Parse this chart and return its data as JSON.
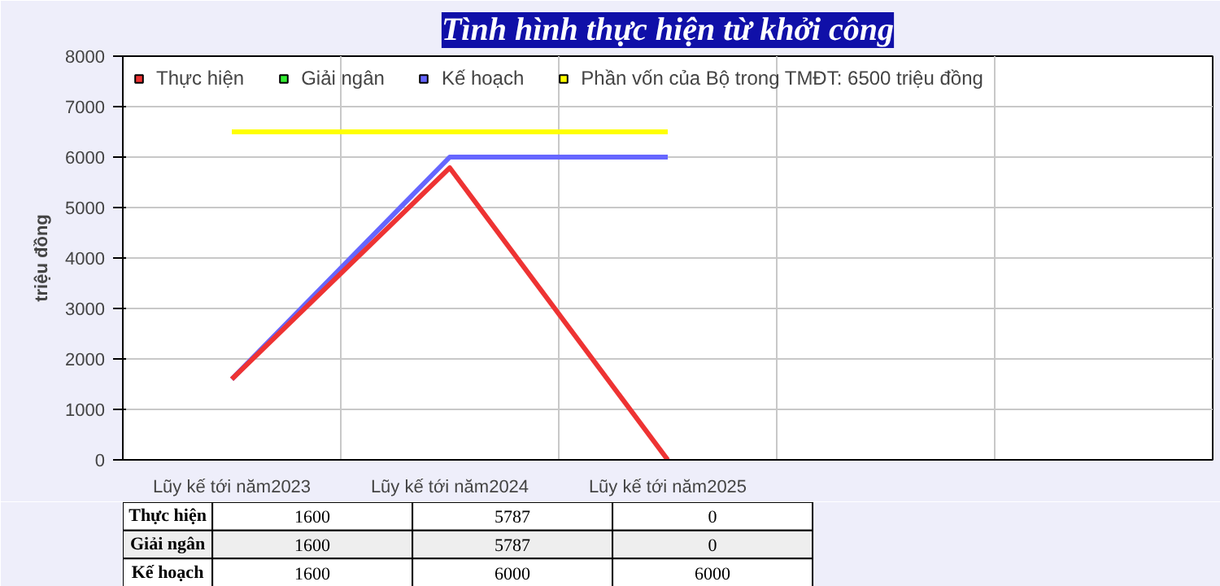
{
  "chart_data": {
    "type": "line",
    "title": "Tình hình thực hiện từ khởi công",
    "ylabel": "triệu đồng",
    "categories": [
      "Lũy kế tới năm2023",
      "Lũy kế tới năm2024",
      "Lũy kế tới năm2025",
      null,
      null
    ],
    "series": [
      {
        "name": "Thực hiện",
        "color": "#ee3333",
        "values": [
          1600,
          5787,
          0,
          null,
          null
        ],
        "value_labels": [
          "1600",
          "5787",
          "0",
          null,
          null
        ]
      },
      {
        "name": "Giải ngân",
        "color": "#33ee33",
        "values": [
          null,
          null,
          null,
          null,
          null
        ],
        "value_labels": [
          "1600",
          "5787",
          "0",
          null,
          null
        ]
      },
      {
        "name": "Kế hoạch",
        "color": "#6666ff",
        "values": [
          1600,
          6000,
          6000,
          null,
          null
        ],
        "value_labels": [
          "1600",
          "6000",
          "6000",
          null,
          null
        ]
      },
      {
        "name": "Phần vốn của Bộ trong TMĐT: 6500 triệu đồng",
        "color": "#ffff00",
        "values": [
          6500,
          6500,
          6500,
          null,
          null
        ]
      }
    ],
    "ylim": [
      0,
      8000
    ],
    "yticks": [
      0,
      1000,
      2000,
      3000,
      4000,
      5000,
      6000,
      7000,
      8000
    ],
    "grid": true,
    "legend": "top",
    "marker": "none",
    "line_style": "solid"
  }
}
